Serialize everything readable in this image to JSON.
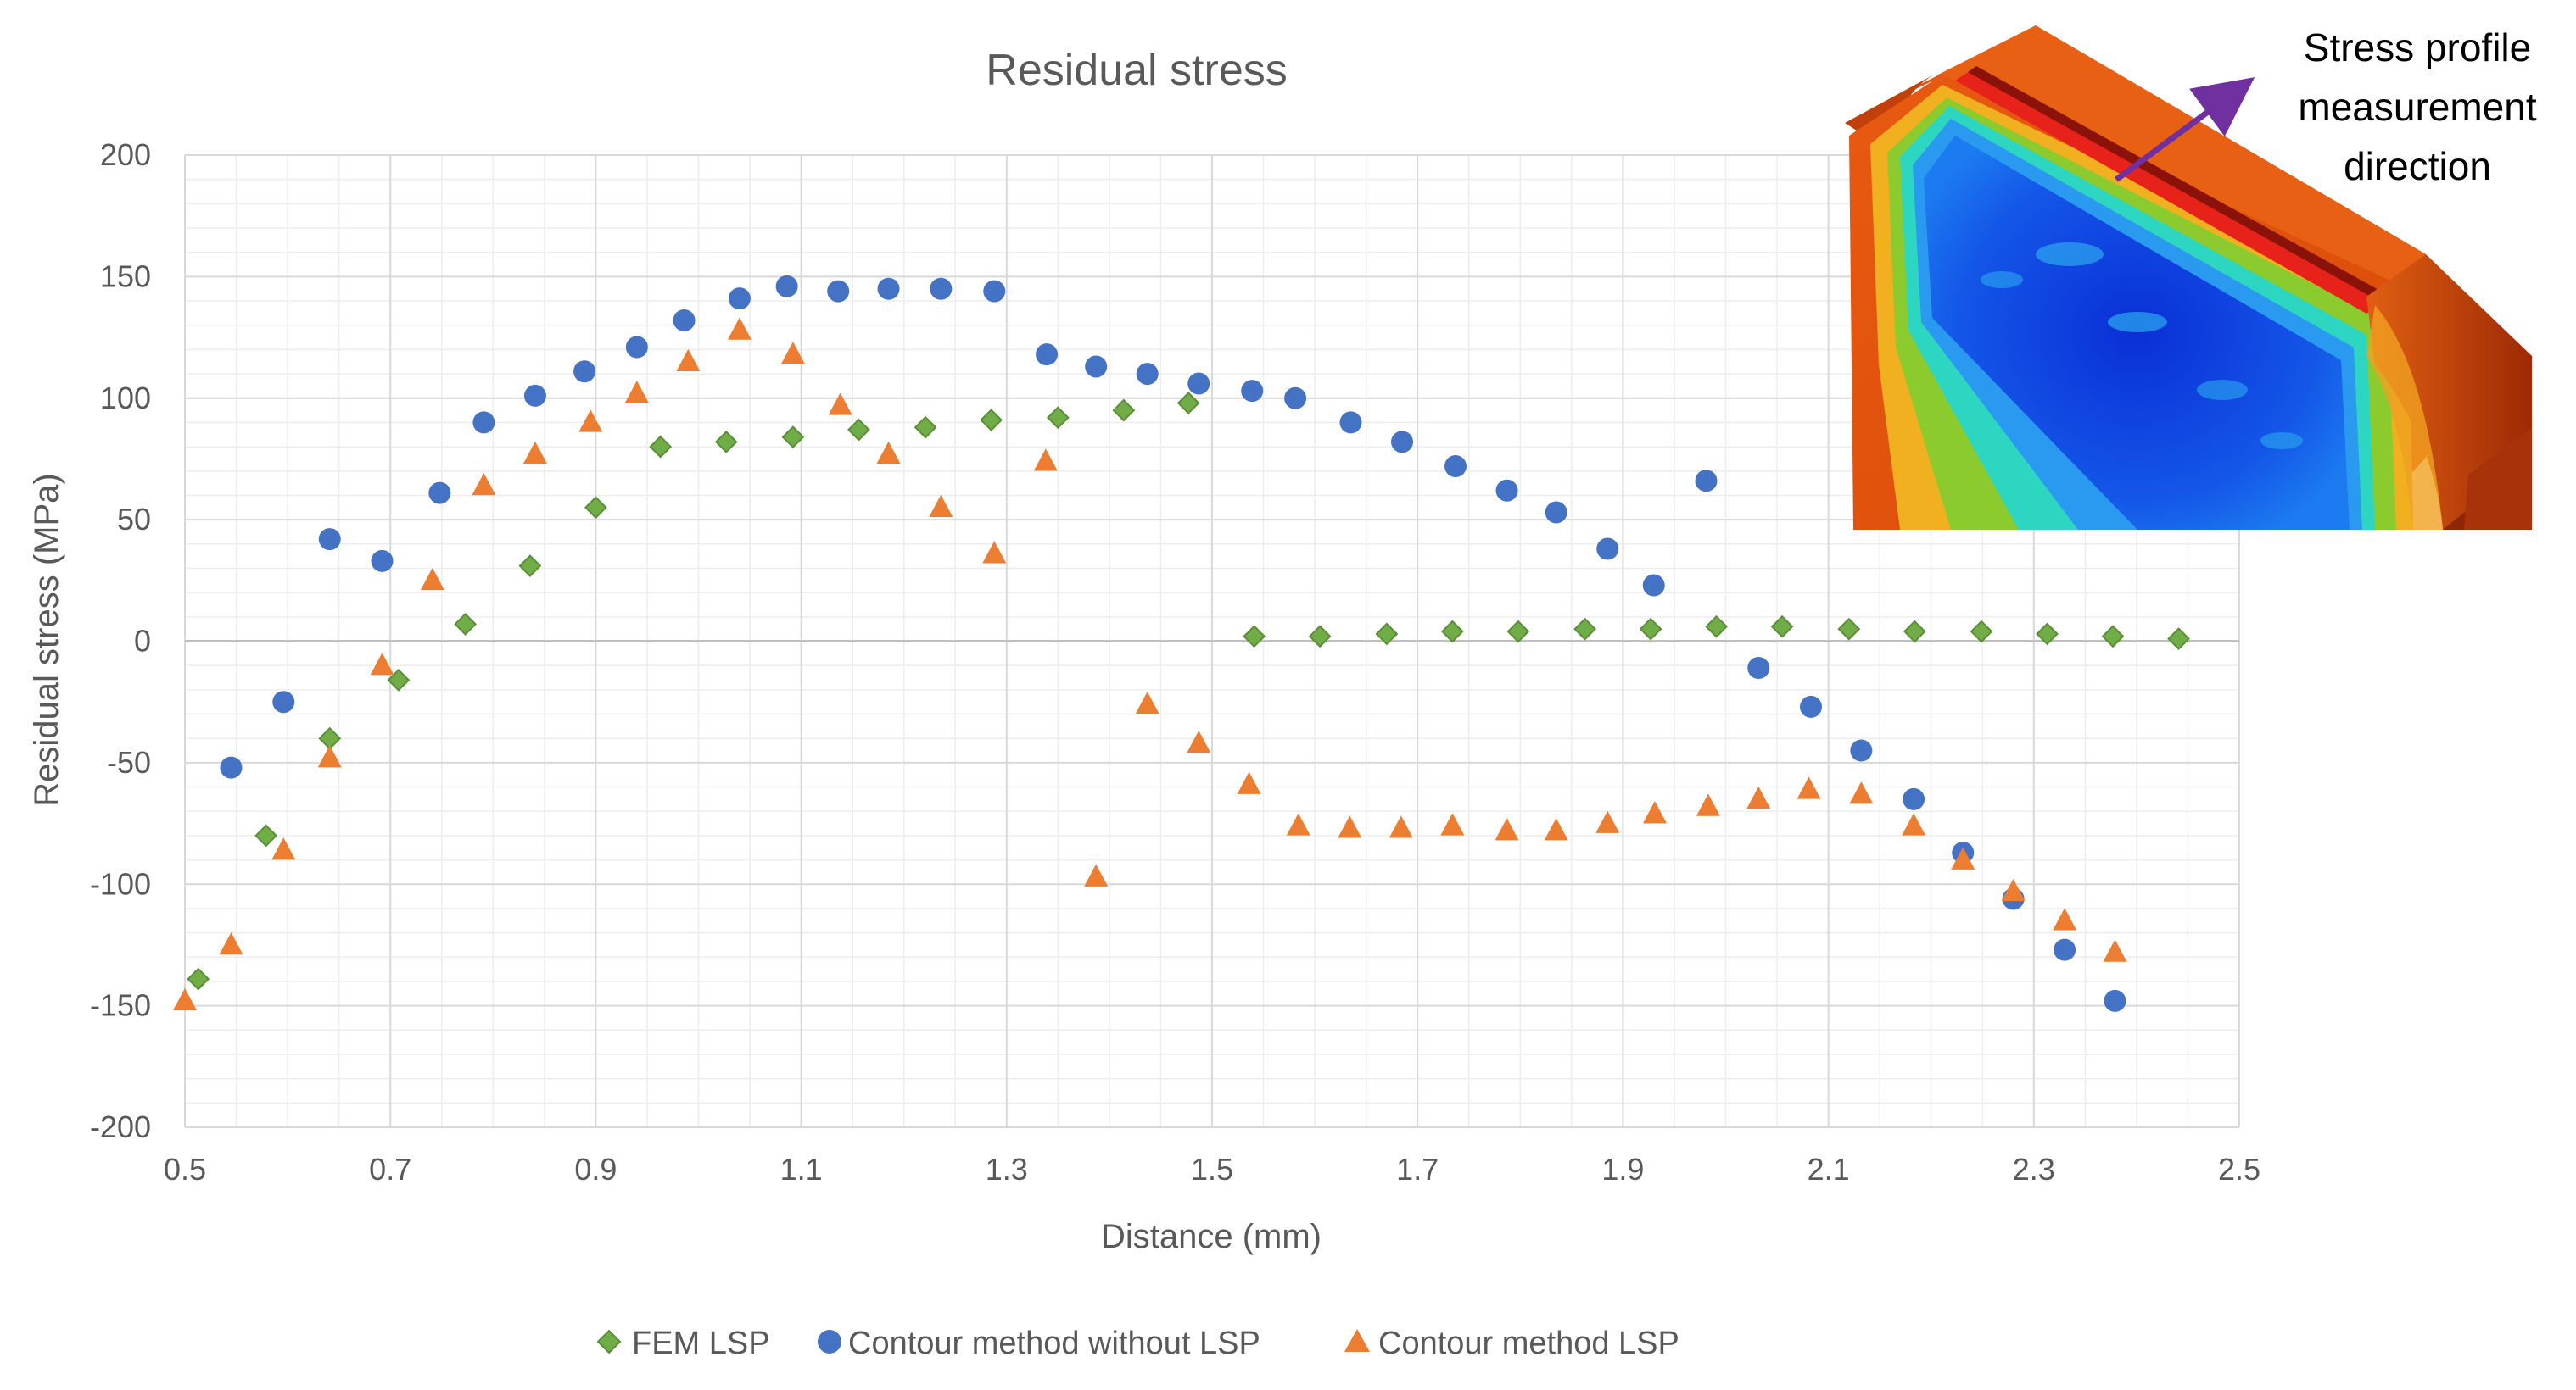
{
  "chart_data": {
    "type": "scatter",
    "title": "Residual stress",
    "xlabel": "Distance (mm)",
    "ylabel": "Residual stress (MPa)",
    "xlim": [
      0.5,
      2.5
    ],
    "ylim": [
      -200,
      200
    ],
    "x_ticks": [
      0.5,
      0.7,
      0.9,
      1.1,
      1.3,
      1.5,
      1.7,
      1.9,
      2.1,
      2.3,
      2.5
    ],
    "x_tick_labels": [
      "0.5",
      "0.7",
      "0.9",
      "1.1",
      "1.3",
      "1.5",
      "1.7",
      "1.9",
      "2.1",
      "2.3",
      "2.5"
    ],
    "y_ticks": [
      200,
      150,
      100,
      50,
      0,
      -50,
      -100,
      -150,
      -200
    ],
    "y_tick_labels": [
      "200",
      "150",
      "100",
      "50",
      "0",
      "-50",
      "-100",
      "-150",
      "-200"
    ],
    "grid": true,
    "minor_grid": true,
    "legend_position": "bottom",
    "series": [
      {
        "name": "FEM LSP",
        "marker": "diamond",
        "color": "#70AD47",
        "points": [
          [
            0.513,
            -139
          ],
          [
            0.579,
            -80
          ],
          [
            0.641,
            -40
          ],
          [
            0.708,
            -16
          ],
          [
            0.773,
            7
          ],
          [
            0.836,
            31
          ],
          [
            0.9,
            55
          ],
          [
            0.963,
            80
          ],
          [
            1.027,
            82
          ],
          [
            1.092,
            84
          ],
          [
            1.156,
            87
          ],
          [
            1.221,
            88
          ],
          [
            1.285,
            91
          ],
          [
            1.35,
            92
          ],
          [
            1.414,
            95
          ],
          [
            1.477,
            98
          ],
          [
            1.541,
            2
          ],
          [
            1.605,
            2
          ],
          [
            1.67,
            3
          ],
          [
            1.734,
            4
          ],
          [
            1.798,
            4
          ],
          [
            1.863,
            5
          ],
          [
            1.927,
            5
          ],
          [
            1.991,
            6
          ],
          [
            2.055,
            6
          ],
          [
            2.12,
            5
          ],
          [
            2.184,
            4
          ],
          [
            2.249,
            4
          ],
          [
            2.313,
            3
          ],
          [
            2.377,
            2
          ],
          [
            2.441,
            1
          ]
        ]
      },
      {
        "name": "Contour method without LSP",
        "marker": "circle",
        "color": "#4472C4",
        "points": [
          [
            0.545,
            -52
          ],
          [
            0.596,
            -25
          ],
          [
            0.641,
            42
          ],
          [
            0.692,
            33
          ],
          [
            0.748,
            61
          ],
          [
            0.791,
            90
          ],
          [
            0.841,
            101
          ],
          [
            0.889,
            111
          ],
          [
            0.94,
            121
          ],
          [
            0.986,
            132
          ],
          [
            1.04,
            141
          ],
          [
            1.086,
            146
          ],
          [
            1.136,
            144
          ],
          [
            1.185,
            145
          ],
          [
            1.236,
            145
          ],
          [
            1.288,
            144
          ],
          [
            1.339,
            118
          ],
          [
            1.387,
            113
          ],
          [
            1.437,
            110
          ],
          [
            1.487,
            106
          ],
          [
            1.539,
            103
          ],
          [
            1.581,
            100
          ],
          [
            1.635,
            90
          ],
          [
            1.685,
            82
          ],
          [
            1.737,
            72
          ],
          [
            1.787,
            62
          ],
          [
            1.835,
            53
          ],
          [
            1.885,
            38
          ],
          [
            1.93,
            23
          ],
          [
            1.981,
            66
          ],
          [
            2.032,
            -11
          ],
          [
            2.083,
            -27
          ],
          [
            2.132,
            -45
          ],
          [
            2.183,
            -65
          ],
          [
            2.231,
            -87
          ],
          [
            2.28,
            -106
          ],
          [
            2.33,
            -127
          ],
          [
            2.379,
            -148
          ]
        ]
      },
      {
        "name": "Contour method LSP",
        "marker": "triangle",
        "color": "#ED7D31",
        "points": [
          [
            0.5,
            -148
          ],
          [
            0.545,
            -125
          ],
          [
            0.596,
            -86
          ],
          [
            0.641,
            -48
          ],
          [
            0.692,
            -10
          ],
          [
            0.741,
            25
          ],
          [
            0.791,
            64
          ],
          [
            0.841,
            77
          ],
          [
            0.895,
            90
          ],
          [
            0.94,
            102
          ],
          [
            0.99,
            115
          ],
          [
            1.04,
            128
          ],
          [
            1.092,
            118
          ],
          [
            1.138,
            97
          ],
          [
            1.185,
            77
          ],
          [
            1.236,
            55
          ],
          [
            1.288,
            36
          ],
          [
            1.338,
            74
          ],
          [
            1.387,
            -97
          ],
          [
            1.437,
            -26
          ],
          [
            1.487,
            -42
          ],
          [
            1.536,
            -59
          ],
          [
            1.584,
            -76
          ],
          [
            1.634,
            -77
          ],
          [
            1.684,
            -77
          ],
          [
            1.734,
            -76
          ],
          [
            1.787,
            -78
          ],
          [
            1.835,
            -78
          ],
          [
            1.885,
            -75
          ],
          [
            1.931,
            -71
          ],
          [
            1.983,
            -68
          ],
          [
            2.032,
            -65
          ],
          [
            2.081,
            -61
          ],
          [
            2.132,
            -63
          ],
          [
            2.183,
            -76
          ],
          [
            2.231,
            -90
          ],
          [
            2.28,
            -103
          ],
          [
            2.33,
            -115
          ],
          [
            2.379,
            -128
          ]
        ]
      }
    ],
    "legend": [
      "FEM LSP",
      "Contour method without LSP",
      "Contour method LSP"
    ]
  },
  "inset": {
    "lines": [
      "Stress profile",
      "measurement",
      "direction"
    ],
    "arrow_color": "#7030A0"
  },
  "colors": {
    "axis_text": "#595959",
    "grid_major": "#D9D9D9",
    "grid_minor": "#EDEDED"
  }
}
